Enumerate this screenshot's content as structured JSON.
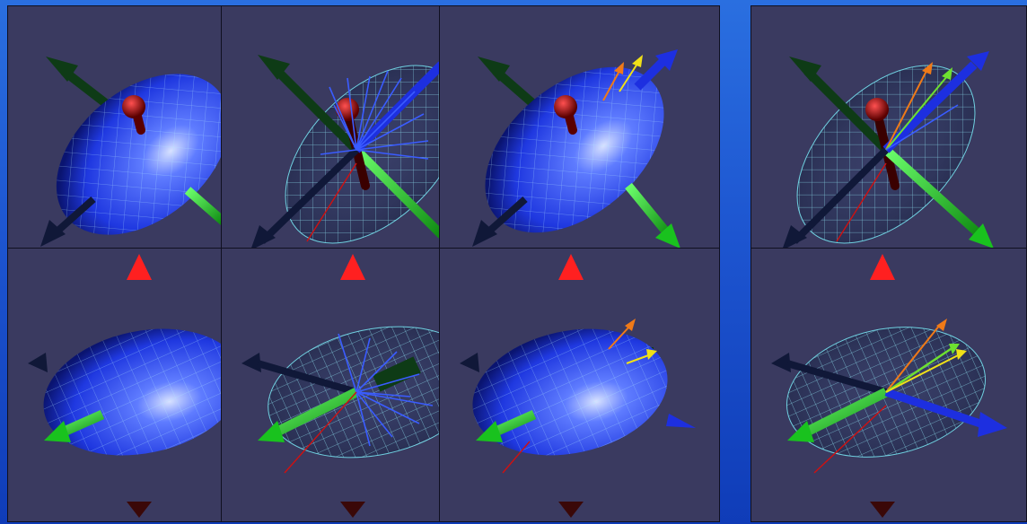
{
  "figure": {
    "background_gradient": [
      "#2a6fe0",
      "#0f3cb8"
    ],
    "panel_color": "#3a3a60"
  },
  "panels": [
    {
      "row": "top",
      "view": "ellipsoid-solid",
      "arrows": [
        "axis-green",
        "axis-navy",
        "axis-red-stub"
      ]
    },
    {
      "row": "top",
      "view": "ellipsoid-wireframe-multivector",
      "arrows": [
        "axis-green",
        "axis-navy",
        "axis-red-stub",
        "blue-vector-fan",
        "red-thin-line"
      ]
    },
    {
      "row": "top",
      "view": "ellipsoid-solid-with-vectors",
      "arrows": [
        "axis-green",
        "axis-navy",
        "axis-red-stub",
        "orange-vector",
        "yellow-vector",
        "axis-blue"
      ]
    },
    {
      "row": "top",
      "view": "ellipsoid-wireframe-with-vectors",
      "arrows": [
        "axis-green",
        "axis-navy",
        "axis-red-stub",
        "orange-vector",
        "green-vector",
        "axis-blue",
        "red-thin-line"
      ]
    },
    {
      "row": "bottom",
      "view": "ellipsoid-solid",
      "arrows": [
        "axis-red-up",
        "axis-dark-red-down",
        "axis-green"
      ]
    },
    {
      "row": "bottom",
      "view": "ellipsoid-wireframe-multivector",
      "arrows": [
        "axis-red-up",
        "axis-dark-red-down",
        "axis-green",
        "blue-vector-fan",
        "red-thin-line"
      ]
    },
    {
      "row": "bottom",
      "view": "ellipsoid-solid-with-vectors",
      "arrows": [
        "axis-red-up",
        "axis-dark-red-down",
        "axis-green",
        "orange-vector",
        "yellow-vector",
        "axis-blue"
      ]
    },
    {
      "row": "bottom",
      "view": "ellipsoid-wireframe-with-vectors",
      "arrows": [
        "axis-red-up",
        "axis-dark-red-down",
        "axis-green",
        "orange-vector",
        "green-vector",
        "yellow-vector",
        "axis-blue",
        "red-thin-line"
      ]
    }
  ],
  "colors": {
    "ellipsoid": "#2747e8",
    "ellipsoid_highlight": "#9fb4ff",
    "wire": "#6fd0e0",
    "green_axis": "#19c21e",
    "dark_green_axis": "#0e3b16",
    "red_axis": "#d01010",
    "dark_red_axis": "#3a0808",
    "navy_axis": "#101838",
    "blue_axis": "#1d2fe0",
    "orange_vector": "#f07a18",
    "yellow_vector": "#f0e018",
    "light_green_vector": "#6ee030"
  }
}
